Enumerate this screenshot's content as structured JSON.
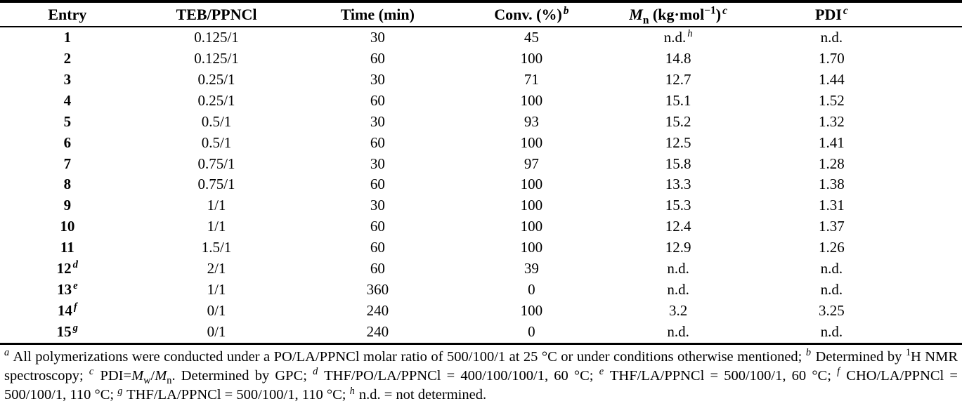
{
  "table": {
    "headers": {
      "entry": "Entry",
      "teb": "TEB/PPNCl",
      "time": "Time (min)",
      "conv": "Conv. (%)",
      "conv_sup": "b",
      "mn_symbol": "M",
      "mn_symbol_sub": "n",
      "mn_unit_pre": " (kg·mol",
      "mn_unit_sup": "−1",
      "mn_unit_post": ")",
      "mn_sup": "c",
      "pdi": "PDI",
      "pdi_sup": "c"
    },
    "rows": [
      {
        "entry": "1",
        "entry_sup": "",
        "teb": "0.125/1",
        "time": "30",
        "conv": "45",
        "mn": "n.d.",
        "mn_sup": "h",
        "pdi": "n.d."
      },
      {
        "entry": "2",
        "entry_sup": "",
        "teb": "0.125/1",
        "time": "60",
        "conv": "100",
        "mn": "14.8",
        "mn_sup": "",
        "pdi": "1.70"
      },
      {
        "entry": "3",
        "entry_sup": "",
        "teb": "0.25/1",
        "time": "30",
        "conv": "71",
        "mn": "12.7",
        "mn_sup": "",
        "pdi": "1.44"
      },
      {
        "entry": "4",
        "entry_sup": "",
        "teb": "0.25/1",
        "time": "60",
        "conv": "100",
        "mn": "15.1",
        "mn_sup": "",
        "pdi": "1.52"
      },
      {
        "entry": "5",
        "entry_sup": "",
        "teb": "0.5/1",
        "time": "30",
        "conv": "93",
        "mn": "15.2",
        "mn_sup": "",
        "pdi": "1.32"
      },
      {
        "entry": "6",
        "entry_sup": "",
        "teb": "0.5/1",
        "time": "60",
        "conv": "100",
        "mn": "12.5",
        "mn_sup": "",
        "pdi": "1.41"
      },
      {
        "entry": "7",
        "entry_sup": "",
        "teb": "0.75/1",
        "time": "30",
        "conv": "97",
        "mn": "15.8",
        "mn_sup": "",
        "pdi": "1.28"
      },
      {
        "entry": "8",
        "entry_sup": "",
        "teb": "0.75/1",
        "time": "60",
        "conv": "100",
        "mn": "13.3",
        "mn_sup": "",
        "pdi": "1.38"
      },
      {
        "entry": "9",
        "entry_sup": "",
        "teb": "1/1",
        "time": "30",
        "conv": "100",
        "mn": "15.3",
        "mn_sup": "",
        "pdi": "1.31"
      },
      {
        "entry": "10",
        "entry_sup": "",
        "teb": "1/1",
        "time": "60",
        "conv": "100",
        "mn": "12.4",
        "mn_sup": "",
        "pdi": "1.37"
      },
      {
        "entry": "11",
        "entry_sup": "",
        "teb": "1.5/1",
        "time": "60",
        "conv": "100",
        "mn": "12.9",
        "mn_sup": "",
        "pdi": "1.26"
      },
      {
        "entry": "12",
        "entry_sup": "d",
        "teb": "2/1",
        "time": "60",
        "conv": "39",
        "mn": "n.d.",
        "mn_sup": "",
        "pdi": "n.d."
      },
      {
        "entry": "13",
        "entry_sup": "e",
        "teb": "1/1",
        "time": "360",
        "conv": "0",
        "mn": "n.d.",
        "mn_sup": "",
        "pdi": "n.d."
      },
      {
        "entry": "14",
        "entry_sup": "f",
        "teb": "0/1",
        "time": "240",
        "conv": "100",
        "mn": "3.2",
        "mn_sup": "",
        "pdi": "3.25"
      },
      {
        "entry": "15",
        "entry_sup": "g",
        "teb": "0/1",
        "time": "240",
        "conv": "0",
        "mn": "n.d.",
        "mn_sup": "",
        "pdi": "n.d."
      }
    ]
  },
  "footnotes": {
    "tokens": [
      {
        "t": "supi",
        "v": "a"
      },
      {
        "t": "text",
        "v": " All polymerizations were conducted under a PO/LA/PPNCl molar ratio of 500/100/1 at 25 °C or under conditions otherwise mentioned; "
      },
      {
        "t": "supi",
        "v": "b"
      },
      {
        "t": "text",
        "v": " Determined by "
      },
      {
        "t": "sup",
        "v": "1"
      },
      {
        "t": "text",
        "v": "H NMR spectroscopy; "
      },
      {
        "t": "supi",
        "v": "c"
      },
      {
        "t": "text",
        "v": " PDI="
      },
      {
        "t": "i",
        "v": "M"
      },
      {
        "t": "sub",
        "v": "w"
      },
      {
        "t": "text",
        "v": "/"
      },
      {
        "t": "i",
        "v": "M"
      },
      {
        "t": "sub",
        "v": "n"
      },
      {
        "t": "text",
        "v": ". Determined by GPC; "
      },
      {
        "t": "supi",
        "v": "d"
      },
      {
        "t": "text",
        "v": " THF/PO/LA/PPNCl = 400/100/100/1, 60 °C; "
      },
      {
        "t": "supi",
        "v": "e"
      },
      {
        "t": "text",
        "v": " THF/LA/PPNCl = 500/100/1, 60 °C; "
      },
      {
        "t": "supi",
        "v": "f"
      },
      {
        "t": "text",
        "v": " CHO/LA/PPNCl = 500/100/1, 110 °C; "
      },
      {
        "t": "supi",
        "v": "g"
      },
      {
        "t": "text",
        "v": " THF/LA/PPNCl = 500/100/1, 110 °C; "
      },
      {
        "t": "supi",
        "v": "h"
      },
      {
        "t": "text",
        "v": " n.d. = not determined."
      }
    ]
  },
  "colors": {
    "text": "#000000",
    "background": "#ffffff",
    "rule": "#000000"
  }
}
